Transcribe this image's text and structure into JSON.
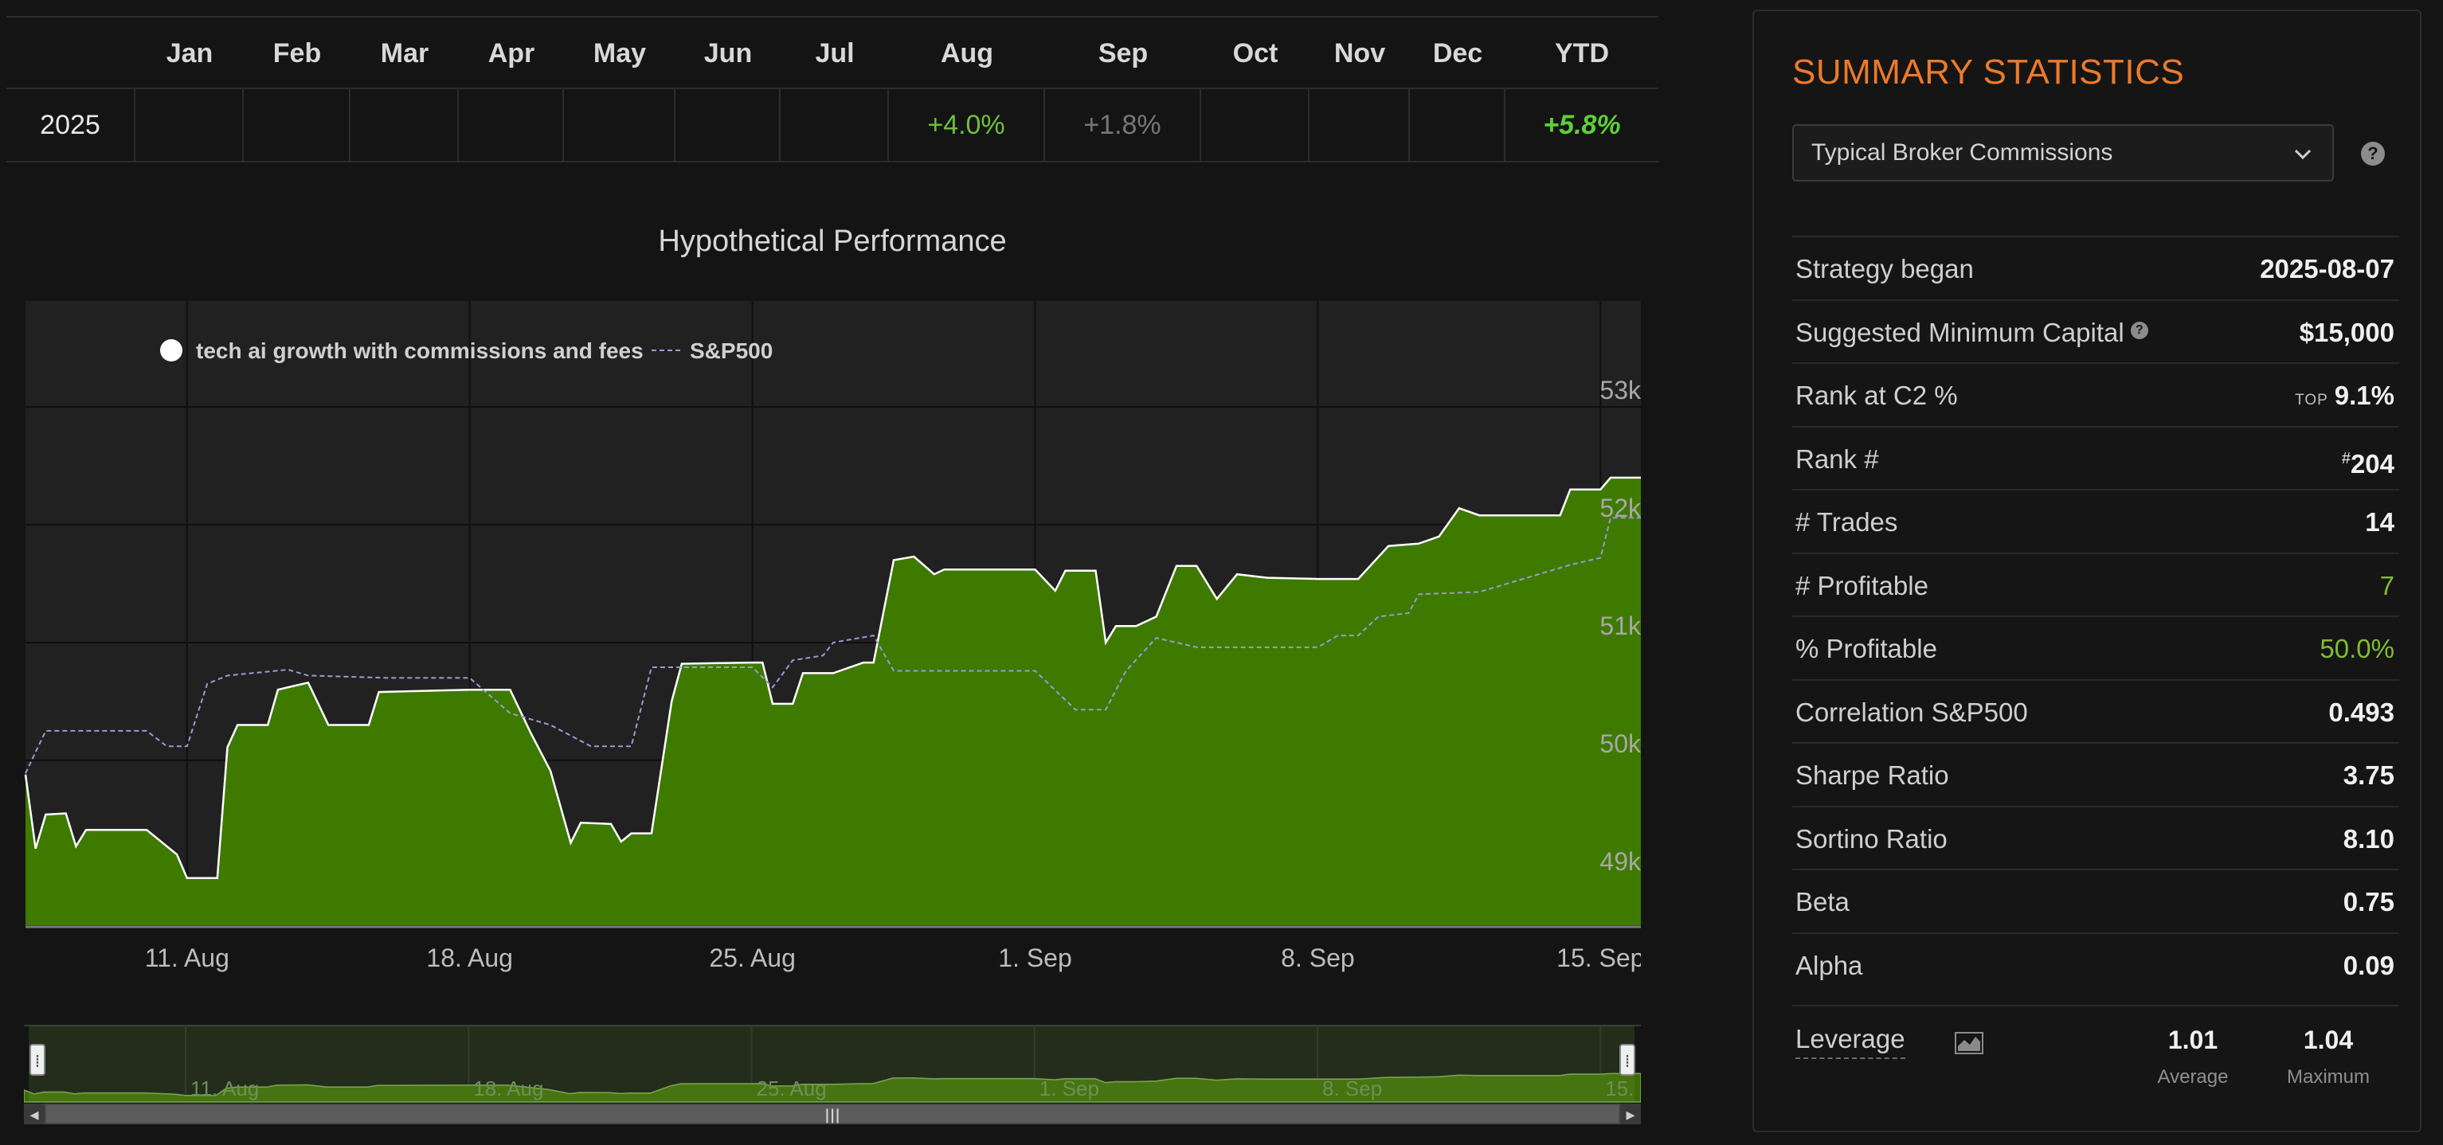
{
  "returns_table": {
    "headers": [
      "",
      "Jan",
      "Feb",
      "Mar",
      "Apr",
      "May",
      "Jun",
      "Jul",
      "Aug",
      "Sep",
      "Oct",
      "Nov",
      "Dec",
      "YTD"
    ],
    "rows": [
      {
        "year": "2025",
        "cells": [
          "",
          "",
          "",
          "",
          "",
          "",
          "",
          "+4.0%",
          "+1.8%",
          "",
          "",
          "",
          "+5.8%"
        ]
      }
    ],
    "colors": {
      "positive": "#6fbf3e",
      "muted": "#777777"
    }
  },
  "chart": {
    "title": "Hypothetical Performance",
    "legend": [
      {
        "label": "tech ai growth with commissions and fees",
        "marker": "white-circle"
      },
      {
        "label": "S&P500",
        "marker": "dashed-line"
      }
    ],
    "colors": {
      "strategy_fill": "#3f7a00",
      "strategy_line": "#ffffff",
      "sp500_line": "#9a9ad8",
      "plot_bg": "#212121"
    }
  },
  "chart_data": {
    "type": "area",
    "title": "Hypothetical Performance",
    "x_unit": "date (2025)",
    "xticks": [
      "11. Aug",
      "18. Aug",
      "25. Aug",
      "1. Sep",
      "8. Sep",
      "15. Sep"
    ],
    "xtick_dates": [
      "2025-08-11",
      "2025-08-18",
      "2025-08-25",
      "2025-09-01",
      "2025-09-08",
      "2025-09-15"
    ],
    "yticks": [
      "49k",
      "50k",
      "51k",
      "52k",
      "53k"
    ],
    "ytick_values": [
      49000,
      50000,
      51000,
      52000,
      53000
    ],
    "xlim": [
      "2025-08-07",
      "2025-09-16"
    ],
    "ylim": [
      48600,
      53900
    ],
    "grid": true,
    "legend_position": "top-left",
    "series": [
      {
        "name": "tech ai growth with commissions and fees",
        "style": "filled-area",
        "points": [
          [
            "2025-08-07",
            49880
          ],
          [
            "2025-08-07T06",
            49250
          ],
          [
            "2025-08-07T12",
            49540
          ],
          [
            "2025-08-08",
            49550
          ],
          [
            "2025-08-08T06",
            49270
          ],
          [
            "2025-08-08T12",
            49410
          ],
          [
            "2025-08-10",
            49410
          ],
          [
            "2025-08-10T18",
            49200
          ],
          [
            "2025-08-11",
            49000
          ],
          [
            "2025-08-11T18",
            49000
          ],
          [
            "2025-08-12",
            50110
          ],
          [
            "2025-08-12T06",
            50300
          ],
          [
            "2025-08-13",
            50300
          ],
          [
            "2025-08-13T06",
            50600
          ],
          [
            "2025-08-14",
            50660
          ],
          [
            "2025-08-14T12",
            50300
          ],
          [
            "2025-08-15T12",
            50300
          ],
          [
            "2025-08-15T18",
            50580
          ],
          [
            "2025-08-18",
            50600
          ],
          [
            "2025-08-19",
            50600
          ],
          [
            "2025-08-19T12",
            50240
          ],
          [
            "2025-08-20",
            49910
          ],
          [
            "2025-08-20T12",
            49300
          ],
          [
            "2025-08-20T18",
            49470
          ],
          [
            "2025-08-21T12",
            49460
          ],
          [
            "2025-08-21T18",
            49310
          ],
          [
            "2025-08-22",
            49380
          ],
          [
            "2025-08-22T12",
            49380
          ],
          [
            "2025-08-23",
            50500
          ],
          [
            "2025-08-23T06",
            50820
          ],
          [
            "2025-08-25",
            50830
          ],
          [
            "2025-08-25T06",
            50830
          ],
          [
            "2025-08-25T12",
            50480
          ],
          [
            "2025-08-26",
            50480
          ],
          [
            "2025-08-26T06",
            50740
          ],
          [
            "2025-08-27",
            50740
          ],
          [
            "2025-08-27T18",
            50830
          ],
          [
            "2025-08-28",
            50830
          ],
          [
            "2025-08-28T12",
            51700
          ],
          [
            "2025-08-29",
            51730
          ],
          [
            "2025-08-29T12",
            51580
          ],
          [
            "2025-08-29T18",
            51620
          ],
          [
            "2025-08-30",
            51620
          ],
          [
            "2025-09-01",
            51620
          ],
          [
            "2025-09-01T12",
            51440
          ],
          [
            "2025-09-01T18",
            51610
          ],
          [
            "2025-09-02T12",
            51610
          ],
          [
            "2025-09-02T18",
            51000
          ],
          [
            "2025-09-03",
            51140
          ],
          [
            "2025-09-03T12",
            51140
          ],
          [
            "2025-09-04",
            51220
          ],
          [
            "2025-09-04T12",
            51650
          ],
          [
            "2025-09-05",
            51650
          ],
          [
            "2025-09-05T12",
            51370
          ],
          [
            "2025-09-06",
            51580
          ],
          [
            "2025-09-06T18",
            51550
          ],
          [
            "2025-09-08",
            51540
          ],
          [
            "2025-09-09",
            51540
          ],
          [
            "2025-09-09T18",
            51820
          ],
          [
            "2025-09-10T12",
            51840
          ],
          [
            "2025-09-11",
            51900
          ],
          [
            "2025-09-11T12",
            52140
          ],
          [
            "2025-09-12",
            52080
          ],
          [
            "2025-09-14",
            52080
          ],
          [
            "2025-09-14T06",
            52300
          ],
          [
            "2025-09-15",
            52300
          ],
          [
            "2025-09-15T06",
            52400
          ],
          [
            "2025-09-15T18",
            52400
          ],
          [
            "2025-09-16",
            52400
          ]
        ]
      },
      {
        "name": "S&P500",
        "style": "dashed-line",
        "points": [
          [
            "2025-08-07",
            49890
          ],
          [
            "2025-08-07T12",
            50250
          ],
          [
            "2025-08-10",
            50250
          ],
          [
            "2025-08-10T12",
            50120
          ],
          [
            "2025-08-11",
            50120
          ],
          [
            "2025-08-11T12",
            50650
          ],
          [
            "2025-08-12",
            50720
          ],
          [
            "2025-08-13T12",
            50770
          ],
          [
            "2025-08-14",
            50720
          ],
          [
            "2025-08-16",
            50700
          ],
          [
            "2025-08-18",
            50700
          ],
          [
            "2025-08-19",
            50400
          ],
          [
            "2025-08-20",
            50300
          ],
          [
            "2025-08-21",
            50120
          ],
          [
            "2025-08-22",
            50120
          ],
          [
            "2025-08-22T12",
            50790
          ],
          [
            "2025-08-25",
            50790
          ],
          [
            "2025-08-25T12",
            50620
          ],
          [
            "2025-08-26",
            50850
          ],
          [
            "2025-08-26T18",
            50890
          ],
          [
            "2025-08-27",
            51000
          ],
          [
            "2025-08-28",
            51060
          ],
          [
            "2025-08-28T12",
            50760
          ],
          [
            "2025-09-01",
            50760
          ],
          [
            "2025-09-02",
            50430
          ],
          [
            "2025-09-02T18",
            50430
          ],
          [
            "2025-09-03T06",
            50760
          ],
          [
            "2025-09-04",
            51040
          ],
          [
            "2025-09-05",
            50960
          ],
          [
            "2025-09-08",
            50960
          ],
          [
            "2025-09-08T12",
            51060
          ],
          [
            "2025-09-09",
            51060
          ],
          [
            "2025-09-09T12",
            51220
          ],
          [
            "2025-09-10T06",
            51250
          ],
          [
            "2025-09-10T12",
            51410
          ],
          [
            "2025-09-12",
            51430
          ],
          [
            "2025-09-14T06",
            51660
          ],
          [
            "2025-09-15",
            51720
          ],
          [
            "2025-09-15T06",
            52060
          ],
          [
            "2025-09-16",
            52060
          ]
        ]
      }
    ]
  },
  "navigator": {
    "xticks": [
      "11. Aug",
      "18. Aug",
      "25. Aug",
      "1. Sep",
      "8. Sep",
      "15. Sep"
    ],
    "handle_glyph": "⁞",
    "grip_glyph": "|||",
    "left_arrow": "◂",
    "right_arrow": "▸"
  },
  "summary": {
    "title": "SUMMARY STATISTICS",
    "commission_select": {
      "selected": "Typical Broker Commissions",
      "icon": "chevron-down-icon"
    },
    "help_glyph": "?",
    "stats": [
      {
        "label": "Strategy began",
        "value": "2025-08-07"
      },
      {
        "label": "Suggested Minimum Capital",
        "value": "$15,000",
        "help": true
      },
      {
        "label": "Rank at C2 %",
        "prefix": "TOP",
        "value": "9.1%"
      },
      {
        "label": "Rank #",
        "sup": "#",
        "value": "204"
      },
      {
        "label": "# Trades",
        "value": "14"
      },
      {
        "label": "# Profitable",
        "value": "7",
        "color": "green"
      },
      {
        "label": "% Profitable",
        "value": "50.0%",
        "color": "green"
      },
      {
        "label": "Correlation S&P500",
        "value": "0.493"
      },
      {
        "label": "Sharpe Ratio",
        "value": "3.75"
      },
      {
        "label": "Sortino Ratio",
        "value": "8.10"
      },
      {
        "label": "Beta",
        "value": "0.75"
      },
      {
        "label": "Alpha",
        "value": "0.09"
      }
    ],
    "leverage": {
      "label": "Leverage",
      "icon": "area-chart-icon",
      "average_value": "1.01",
      "average_label": "Average",
      "maximum_value": "1.04",
      "maximum_label": "Maximum"
    },
    "colors": {
      "title": "#ec7a2a",
      "green": "#7fbe2e"
    }
  }
}
